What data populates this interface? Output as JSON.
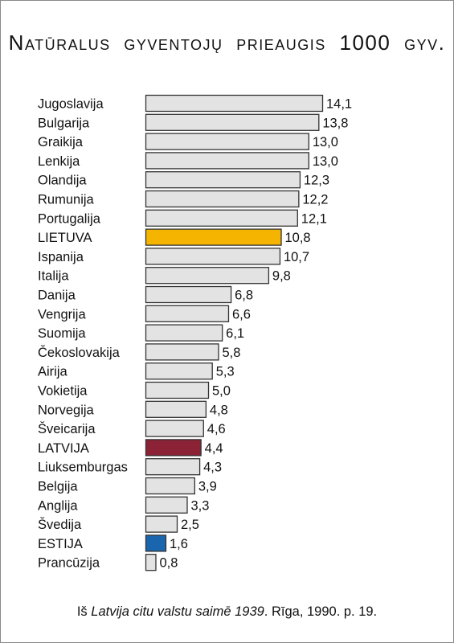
{
  "chart_data": {
    "type": "bar",
    "orientation": "horizontal",
    "title": "Natūralus gyventojų prieaugis 1000 gyv.",
    "categories": [
      "Jugoslavija",
      "Bulgarija",
      "Graikija",
      "Lenkija",
      "Olandija",
      "Rumunija",
      "Portugalija",
      "LIETUVA",
      "Ispanija",
      "Italija",
      "Danija",
      "Vengrija",
      "Suomija",
      "Čekoslovakija",
      "Airija",
      "Vokietija",
      "Norvegija",
      "Šveicarija",
      "LATVIJA",
      "Liuksemburgas",
      "Belgija",
      "Anglija",
      "Švedija",
      "ESTIJA",
      "Prancūzija"
    ],
    "values": [
      14.1,
      13.8,
      13.0,
      13.0,
      12.3,
      12.2,
      12.1,
      10.8,
      10.7,
      9.8,
      6.8,
      6.6,
      6.1,
      5.8,
      5.3,
      5.0,
      4.8,
      4.6,
      4.4,
      4.3,
      3.9,
      3.3,
      2.5,
      1.6,
      0.8
    ],
    "labels": [
      "14,1",
      "13,8",
      "13,0",
      "13,0",
      "12,3",
      "12,2",
      "12,1",
      "10,8",
      "10,7",
      "9,8",
      "6,8",
      "6,6",
      "6,1",
      "5,8",
      "5,3",
      "5,0",
      "4,8",
      "4,6",
      "4,4",
      "4,3",
      "3,9",
      "3,3",
      "2,5",
      "1,6",
      "0,8"
    ],
    "xlim": [
      0,
      14.1
    ],
    "grid": false,
    "colors": {
      "default": "#e3e3e3",
      "LIETUVA": "#f5b400",
      "LATVIJA": "#8b2236",
      "ESTIJA": "#1a66ae",
      "outline": "#333333"
    }
  },
  "source": {
    "prefix": "Iš ",
    "book": "Latvija citu valstu saimē 1939",
    "suffix": ". Rīga, 1990. p. 19."
  }
}
